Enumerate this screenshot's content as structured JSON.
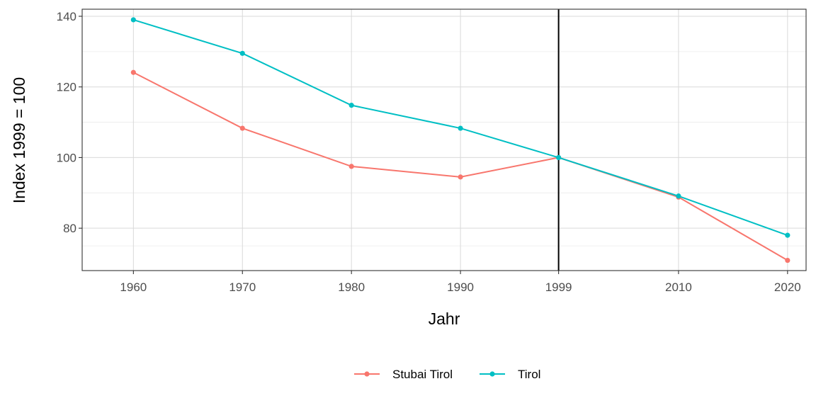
{
  "chart_data": {
    "type": "line",
    "title": "",
    "xlabel": "Jahr",
    "ylabel": "Index 1999 = 100",
    "x": [
      1960,
      1970,
      1980,
      1990,
      1999,
      2010,
      2020
    ],
    "x_tick_labels": [
      "1960",
      "1970",
      "1980",
      "1990",
      "1999",
      "2010",
      "2020"
    ],
    "y_ticks": [
      80,
      100,
      120,
      140
    ],
    "y_tick_labels": [
      "80",
      "100",
      "120",
      "140"
    ],
    "ylim": [
      68,
      142
    ],
    "grid": true,
    "legend_position": "bottom",
    "reference_line": {
      "x": 1999
    },
    "series": [
      {
        "name": "Stubai Tirol",
        "color": "#F8766D",
        "values": [
          124.1,
          108.3,
          97.5,
          94.5,
          100,
          88.8,
          70.9
        ]
      },
      {
        "name": "Tirol",
        "color": "#00BFC4",
        "values": [
          139.0,
          129.5,
          114.8,
          108.3,
          100,
          89.1,
          78.0
        ]
      }
    ]
  }
}
